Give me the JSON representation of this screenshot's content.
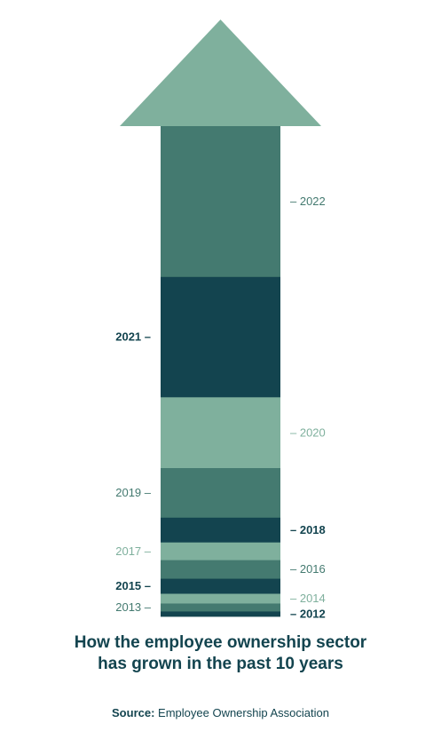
{
  "chart_data": {
    "type": "bar",
    "orientation": "stacked-arrow",
    "categories": [
      "2012",
      "2013",
      "2014",
      "2015",
      "2016",
      "2017",
      "2018",
      "2019",
      "2020",
      "2021",
      "2022"
    ],
    "values": [
      6,
      9,
      11,
      17,
      21,
      20,
      28,
      56,
      80,
      136,
      170
    ],
    "label_side": [
      "right",
      "left",
      "right",
      "left",
      "right",
      "left",
      "right",
      "left",
      "right",
      "left",
      "right"
    ],
    "colors": {
      "dark": "#13444f",
      "mid": "#447a70",
      "light": "#7fb09d"
    },
    "segment_colors": [
      "dark",
      "mid",
      "light",
      "dark",
      "mid",
      "light",
      "dark",
      "mid",
      "light",
      "dark",
      "mid"
    ],
    "arrowhead_color": "#7fb09d",
    "label_colors": {
      "dark": "#13444f",
      "mid": "#447a70",
      "light": "#7fb09d"
    }
  },
  "title_lines": [
    "How the employee ownership sector",
    "has grown in the past 10 years"
  ],
  "source": {
    "label": "Source:",
    "text": " Employee Ownership Association"
  }
}
